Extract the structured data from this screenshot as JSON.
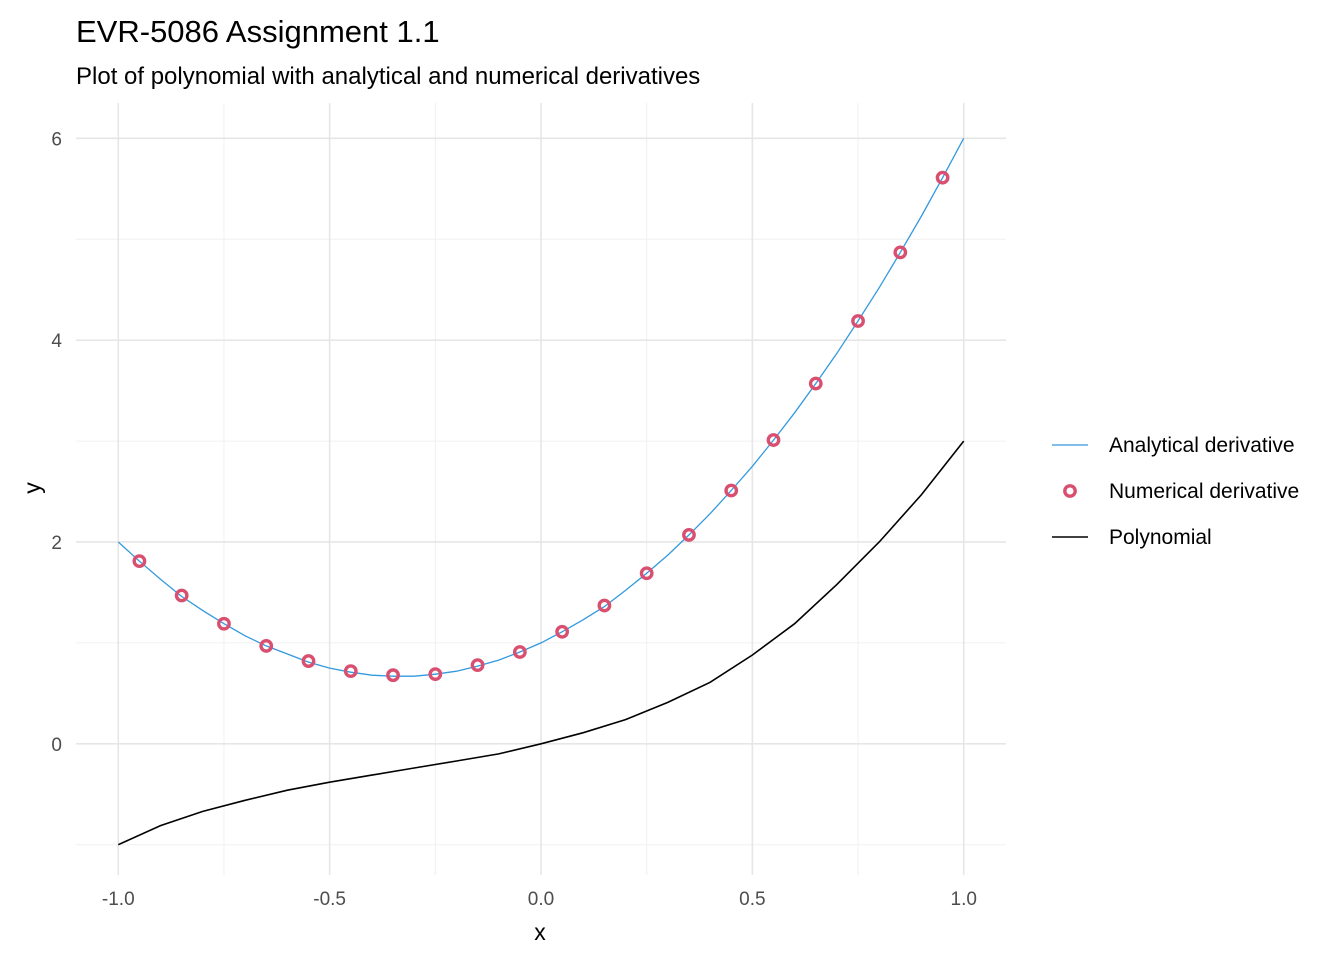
{
  "chart_data": {
    "type": "line",
    "title": "EVR-5086 Assignment 1.1",
    "subtitle": "Plot of polynomial with analytical and numerical derivatives",
    "xlabel": "x",
    "ylabel": "y",
    "xlim": [
      -1.1,
      1.1
    ],
    "ylim": [
      -1.3,
      6.35
    ],
    "x_ticks": [
      -1.0,
      -0.5,
      0.0,
      0.5,
      1.0
    ],
    "x_tick_labels": [
      "-1.0",
      "-0.5",
      "0.0",
      "0.5",
      "1.0"
    ],
    "y_ticks": [
      0,
      2,
      4,
      6
    ],
    "y_tick_labels": [
      "0",
      "2",
      "4",
      "6"
    ],
    "y_minor_ticks": [
      -1,
      1,
      3,
      5
    ],
    "x_minor_ticks": [
      -0.75,
      -0.25,
      0.25,
      0.75
    ],
    "grid": true,
    "legend_position": "right",
    "series": [
      {
        "name": "Analytical derivative",
        "kind": "line",
        "color": "#3399dd",
        "x": [
          -1.0,
          -0.95,
          -0.9,
          -0.85,
          -0.8,
          -0.75,
          -0.7,
          -0.65,
          -0.6,
          -0.55,
          -0.5,
          -0.45,
          -0.4,
          -0.35,
          -0.3,
          -0.25,
          -0.2,
          -0.15,
          -0.1,
          -0.05,
          0.0,
          0.05,
          0.1,
          0.15,
          0.2,
          0.25,
          0.3,
          0.35,
          0.4,
          0.45,
          0.5,
          0.55,
          0.6,
          0.65,
          0.7,
          0.75,
          0.8,
          0.85,
          0.9,
          0.95,
          1.0
        ],
        "y": [
          2.0,
          1.81,
          1.63,
          1.46,
          1.32,
          1.19,
          1.07,
          0.97,
          0.89,
          0.81,
          0.75,
          0.71,
          0.68,
          0.67,
          0.67,
          0.69,
          0.72,
          0.77,
          0.83,
          0.91,
          1.0,
          1.11,
          1.23,
          1.36,
          1.52,
          1.69,
          1.87,
          2.07,
          2.28,
          2.51,
          2.75,
          3.01,
          3.28,
          3.57,
          3.87,
          4.19,
          4.52,
          4.87,
          5.23,
          5.61,
          6.0
        ]
      },
      {
        "name": "Numerical derivative",
        "kind": "points",
        "color": "#d94f70",
        "x": [
          -0.95,
          -0.85,
          -0.75,
          -0.65,
          -0.55,
          -0.45,
          -0.35,
          -0.25,
          -0.15,
          -0.05,
          0.05,
          0.15,
          0.25,
          0.35,
          0.45,
          0.55,
          0.65,
          0.75,
          0.85,
          0.95
        ],
        "y": [
          1.81,
          1.47,
          1.19,
          0.97,
          0.82,
          0.72,
          0.68,
          0.69,
          0.78,
          0.91,
          1.11,
          1.37,
          1.69,
          2.07,
          2.51,
          3.01,
          3.57,
          4.19,
          4.87,
          5.61
        ]
      },
      {
        "name": "Polynomial",
        "kind": "line",
        "color": "#000000",
        "x": [
          -1.0,
          -0.9,
          -0.8,
          -0.7,
          -0.6,
          -0.5,
          -0.4,
          -0.3,
          -0.2,
          -0.1,
          0.0,
          0.1,
          0.2,
          0.3,
          0.4,
          0.5,
          0.6,
          0.7,
          0.8,
          0.9,
          1.0
        ],
        "y": [
          -1.0,
          -0.81,
          -0.67,
          -0.56,
          -0.46,
          -0.38,
          -0.31,
          -0.24,
          -0.17,
          -0.1,
          0.0,
          0.11,
          0.24,
          0.41,
          0.61,
          0.88,
          1.19,
          1.58,
          2.0,
          2.47,
          3.0
        ]
      }
    ]
  }
}
